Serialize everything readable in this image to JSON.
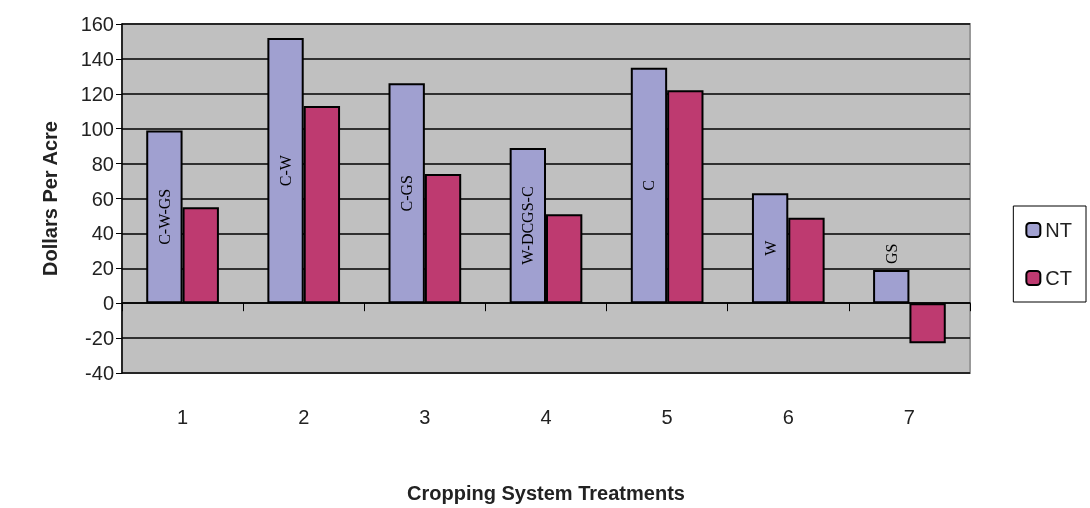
{
  "chart_data": {
    "type": "bar",
    "xlabel": "Cropping System Treatments",
    "ylabel": "Dollars Per Acre",
    "categories": [
      "1",
      "2",
      "3",
      "4",
      "5",
      "6",
      "7"
    ],
    "series": [
      {
        "name": "NT",
        "color": "#a0a0d0",
        "values": [
          99,
          152,
          126,
          89,
          135,
          63,
          19
        ],
        "value_labels": [
          "C-W-GS",
          "C-W",
          "C-GS",
          "W-DCGS-C",
          "C",
          "W",
          "GS"
        ]
      },
      {
        "name": "CT",
        "color": "#be3a70",
        "values": [
          55,
          113,
          74,
          51,
          122,
          49,
          -23
        ]
      }
    ],
    "ylim": [
      -40,
      160
    ],
    "yticks": [
      -40,
      -20,
      0,
      20,
      40,
      60,
      80,
      100,
      120,
      140,
      160
    ],
    "grid": "y",
    "legend": "right"
  }
}
